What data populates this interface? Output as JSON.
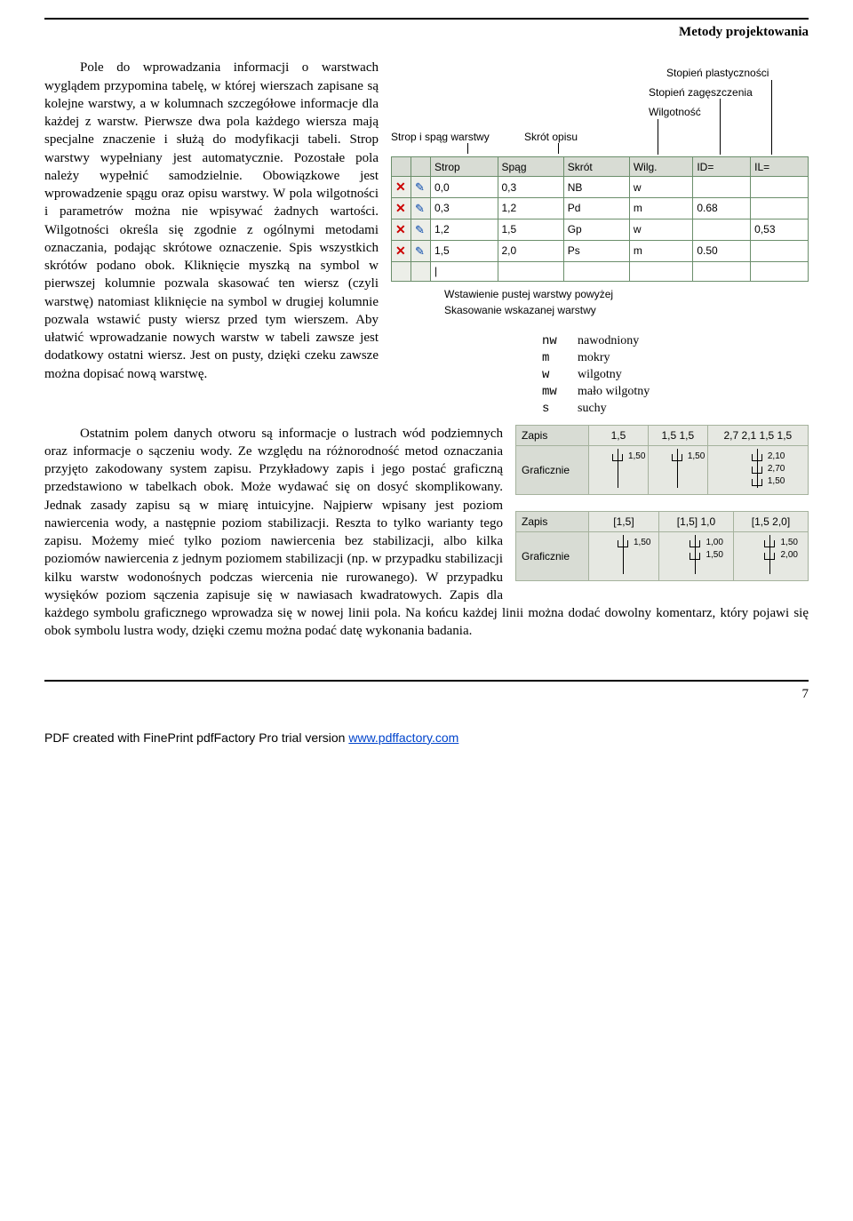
{
  "header": {
    "title": "Metody projektowania"
  },
  "para1_a": "Pole do wprowadzania informacji o warstwach wyglądem przypomina tabelę, w której wierszach zapisane są kolejne warstwy, a w kolumnach szczegółowe informacje dla każdej z warstw. Pierwsze dwa pola każdego wiersza mają specjalne znaczenie i służą do modyfikacji tabeli. Strop warstwy wypełniany jest automatycznie. Pozostałe pola należy wypełnić samodzielnie. Obowiązkowe jest wprowadzenie spągu oraz opisu warstwy. W pola wilgotności i parametrów można nie wpisywać żadnych wartości. Wilgotności określa się zgodnie z ogólnymi metodami oznaczania, podając skrótowe oznaczenie. Spis wszystkich skrótów podano obok. Kliknięcie myszką na symbol w pierwszej kolumnie pozwala skasować ten wiersz (czyli warstwę) natomiast kliknięcie na symbol w drugiej kolumnie pozwala wstawić pusty wiersz przed tym wierszem. Aby ułatwić wprowadzanie nowych warstw w tabeli zawsze jest dodatkowy ostatni wiersz. Jest on pusty, dzięki czeku zawsze można dopisać nową warstwę.",
  "para2": "Ostatnim polem danych otworu są informacje o lustrach wód podziemnych oraz informacje o sączeniu wody. Ze względu na różnorodność metod oznaczania przyjęto zakodowany system zapisu. Przykładowy zapis i jego postać graficzną przedstawiono w tabelkach obok. Może wydawać się on dosyć skomplikowany. Jednak zasady zapisu są w miarę intuicyjne. Najpierw wpisany jest poziom nawiercenia wody, a następnie poziom stabilizacji. Reszta to tylko warianty tego zapisu. Możemy mieć tylko poziom nawiercenia bez stabilizacji, albo kilka poziomów nawiercenia z jednym poziomem stabilizacji (np. w przypadku stabilizacji kilku warstw wodonośnych podczas wiercenia nie rurowanego). W przypadku wysięków poziom sączenia zapisuje się w nawiasach kwadratowych. Zapis dla każdego symbolu graficznego wprowadza się w nowej linii pola. Na końcu każdej linii można dodać dowolny komentarz, który pojawi się obok symbolu lustra wody, dzięki czemu można podać datę wykonania badania.",
  "callouts": {
    "strop": "Strop i spąg warstwy",
    "skrot": "Skrót opisu",
    "wilg": "Wilgotność",
    "zag": "Stopień zagęszczenia",
    "plast": "Stopień plastyczności"
  },
  "layers": {
    "columns": [
      "",
      "",
      "Strop",
      "Spąg",
      "Skrót",
      "Wilg.",
      "ID=",
      "IL="
    ],
    "rows": [
      [
        "0,0",
        "0,3",
        "NB",
        "w",
        "",
        ""
      ],
      [
        "0,3",
        "1,2",
        "Pd",
        "m",
        "0.68",
        ""
      ],
      [
        "1,2",
        "1,5",
        "Gp",
        "w",
        "",
        "0,53"
      ],
      [
        "1,5",
        "2,0",
        "Ps",
        "m",
        "0.50",
        ""
      ]
    ],
    "bg": "#eceee8",
    "border": "#6b8e6b"
  },
  "below": {
    "insert": "Wstawienie pustej warstwy powyżej",
    "delete": "Skasowanie wskazanej warstwy"
  },
  "legend": [
    [
      "nw",
      "nawodniony"
    ],
    [
      "m",
      "mokry"
    ],
    [
      "w",
      "wilgotny"
    ],
    [
      "mw",
      "mało wilgotny"
    ],
    [
      "s",
      "suchy"
    ]
  ],
  "zapis1": {
    "hdr_z": "Zapis",
    "hdr_g": "Graficznie",
    "cells": [
      "1,5",
      "1,5 1,5",
      "2,7 2,1 1,5 1,5"
    ],
    "g_lbls": [
      [
        "1,50"
      ],
      [
        "1,50"
      ],
      [
        "2,10",
        "2,70",
        "1,50"
      ]
    ]
  },
  "zapis2": {
    "hdr_z": "Zapis",
    "hdr_g": "Graficznie",
    "cells": [
      "[1,5]",
      "[1,5] 1,0",
      "[1,5 2,0]"
    ],
    "g_lbls": [
      [
        "1,50"
      ],
      [
        "1,00",
        "1,50"
      ],
      [
        "1,50",
        "2,00"
      ]
    ]
  },
  "footer": {
    "page": "7",
    "pdf_prefix": "PDF created with FinePrint pdfFactory Pro trial version ",
    "pdf_link": "www.pdffactory.com"
  }
}
